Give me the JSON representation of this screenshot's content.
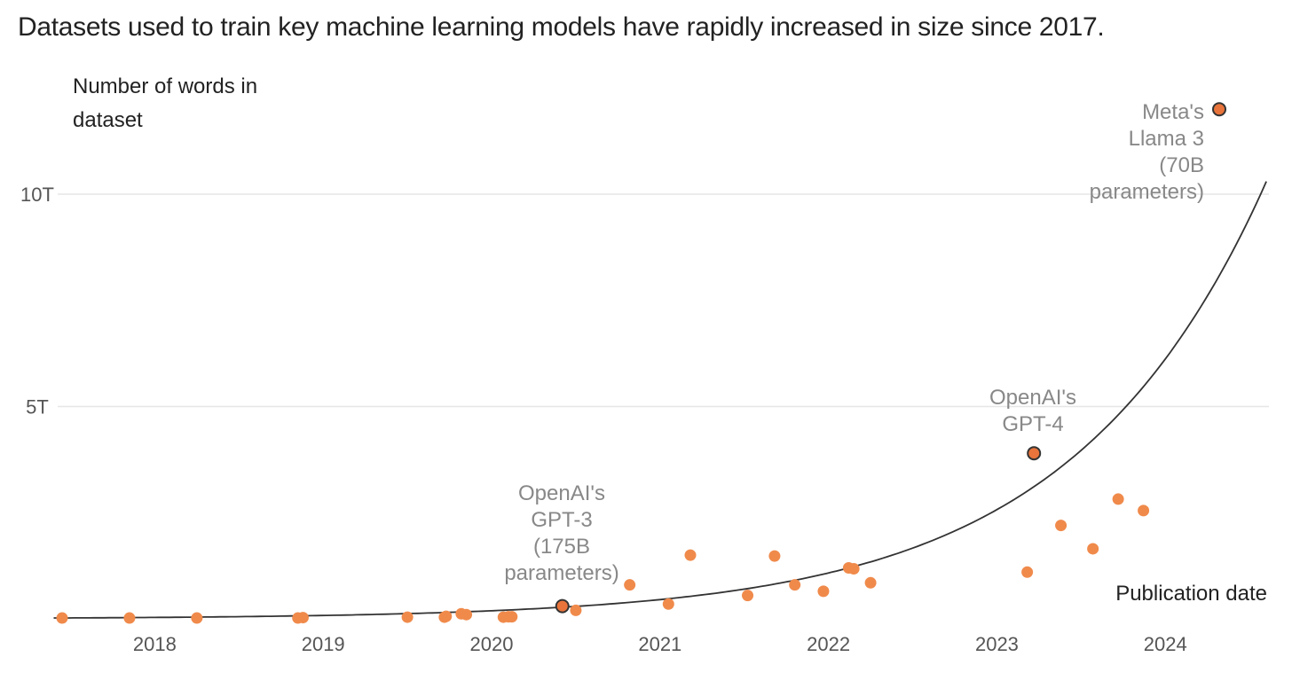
{
  "subtitle": "Datasets used to train key machine learning models have rapidly increased in size since 2017.",
  "chart_data": {
    "type": "scatter",
    "ylabel": [
      "Number of words in",
      "dataset"
    ],
    "xlabel": "Publication date",
    "xlim": [
      2017.4,
      2024.6
    ],
    "ylim": [
      0,
      13
    ],
    "y_unit": "trillion words",
    "x_ticks": [
      2018,
      2019,
      2020,
      2021,
      2022,
      2023,
      2024
    ],
    "y_ticks": [
      {
        "value": 5,
        "label": "5T"
      },
      {
        "value": 10,
        "label": "10T"
      }
    ],
    "grid": "horizontal",
    "colors": {
      "points": "#f08a4b",
      "highlight_fill": "#e8743b",
      "highlight_stroke": "#333333",
      "trend": "#333333"
    },
    "points": [
      {
        "x": 2017.45,
        "y": 0.02
      },
      {
        "x": 2017.85,
        "y": 0.02
      },
      {
        "x": 2018.25,
        "y": 0.02
      },
      {
        "x": 2018.85,
        "y": 0.02
      },
      {
        "x": 2018.88,
        "y": 0.03
      },
      {
        "x": 2019.5,
        "y": 0.04
      },
      {
        "x": 2019.72,
        "y": 0.04
      },
      {
        "x": 2019.73,
        "y": 0.06
      },
      {
        "x": 2019.82,
        "y": 0.12
      },
      {
        "x": 2019.85,
        "y": 0.1
      },
      {
        "x": 2020.07,
        "y": 0.04
      },
      {
        "x": 2020.1,
        "y": 0.05
      },
      {
        "x": 2020.12,
        "y": 0.05
      },
      {
        "x": 2020.5,
        "y": 0.2
      },
      {
        "x": 2020.82,
        "y": 0.8
      },
      {
        "x": 2021.05,
        "y": 0.35
      },
      {
        "x": 2021.18,
        "y": 1.5
      },
      {
        "x": 2021.52,
        "y": 0.55
      },
      {
        "x": 2021.68,
        "y": 1.48
      },
      {
        "x": 2021.8,
        "y": 0.8
      },
      {
        "x": 2021.97,
        "y": 0.65
      },
      {
        "x": 2022.12,
        "y": 1.2
      },
      {
        "x": 2022.15,
        "y": 1.18
      },
      {
        "x": 2022.25,
        "y": 0.85
      },
      {
        "x": 2023.18,
        "y": 1.1
      },
      {
        "x": 2023.38,
        "y": 2.2
      },
      {
        "x": 2023.57,
        "y": 1.65
      },
      {
        "x": 2023.72,
        "y": 2.82
      },
      {
        "x": 2023.87,
        "y": 2.55
      }
    ],
    "highlighted": [
      {
        "x": 2020.42,
        "y": 0.3,
        "label": [
          "OpenAI's",
          "GPT-3",
          "(175B",
          "parameters)"
        ]
      },
      {
        "x": 2023.22,
        "y": 3.9,
        "label": [
          "OpenAI's",
          "GPT-4"
        ]
      },
      {
        "x": 2024.32,
        "y": 12.0,
        "label": [
          "Meta's",
          "Llama 3",
          "(70B",
          "parameters)"
        ]
      }
    ],
    "trendline": {
      "type": "exponential",
      "x": [
        2017.4,
        2024.6
      ],
      "y": [
        0.02,
        10.3
      ]
    }
  }
}
